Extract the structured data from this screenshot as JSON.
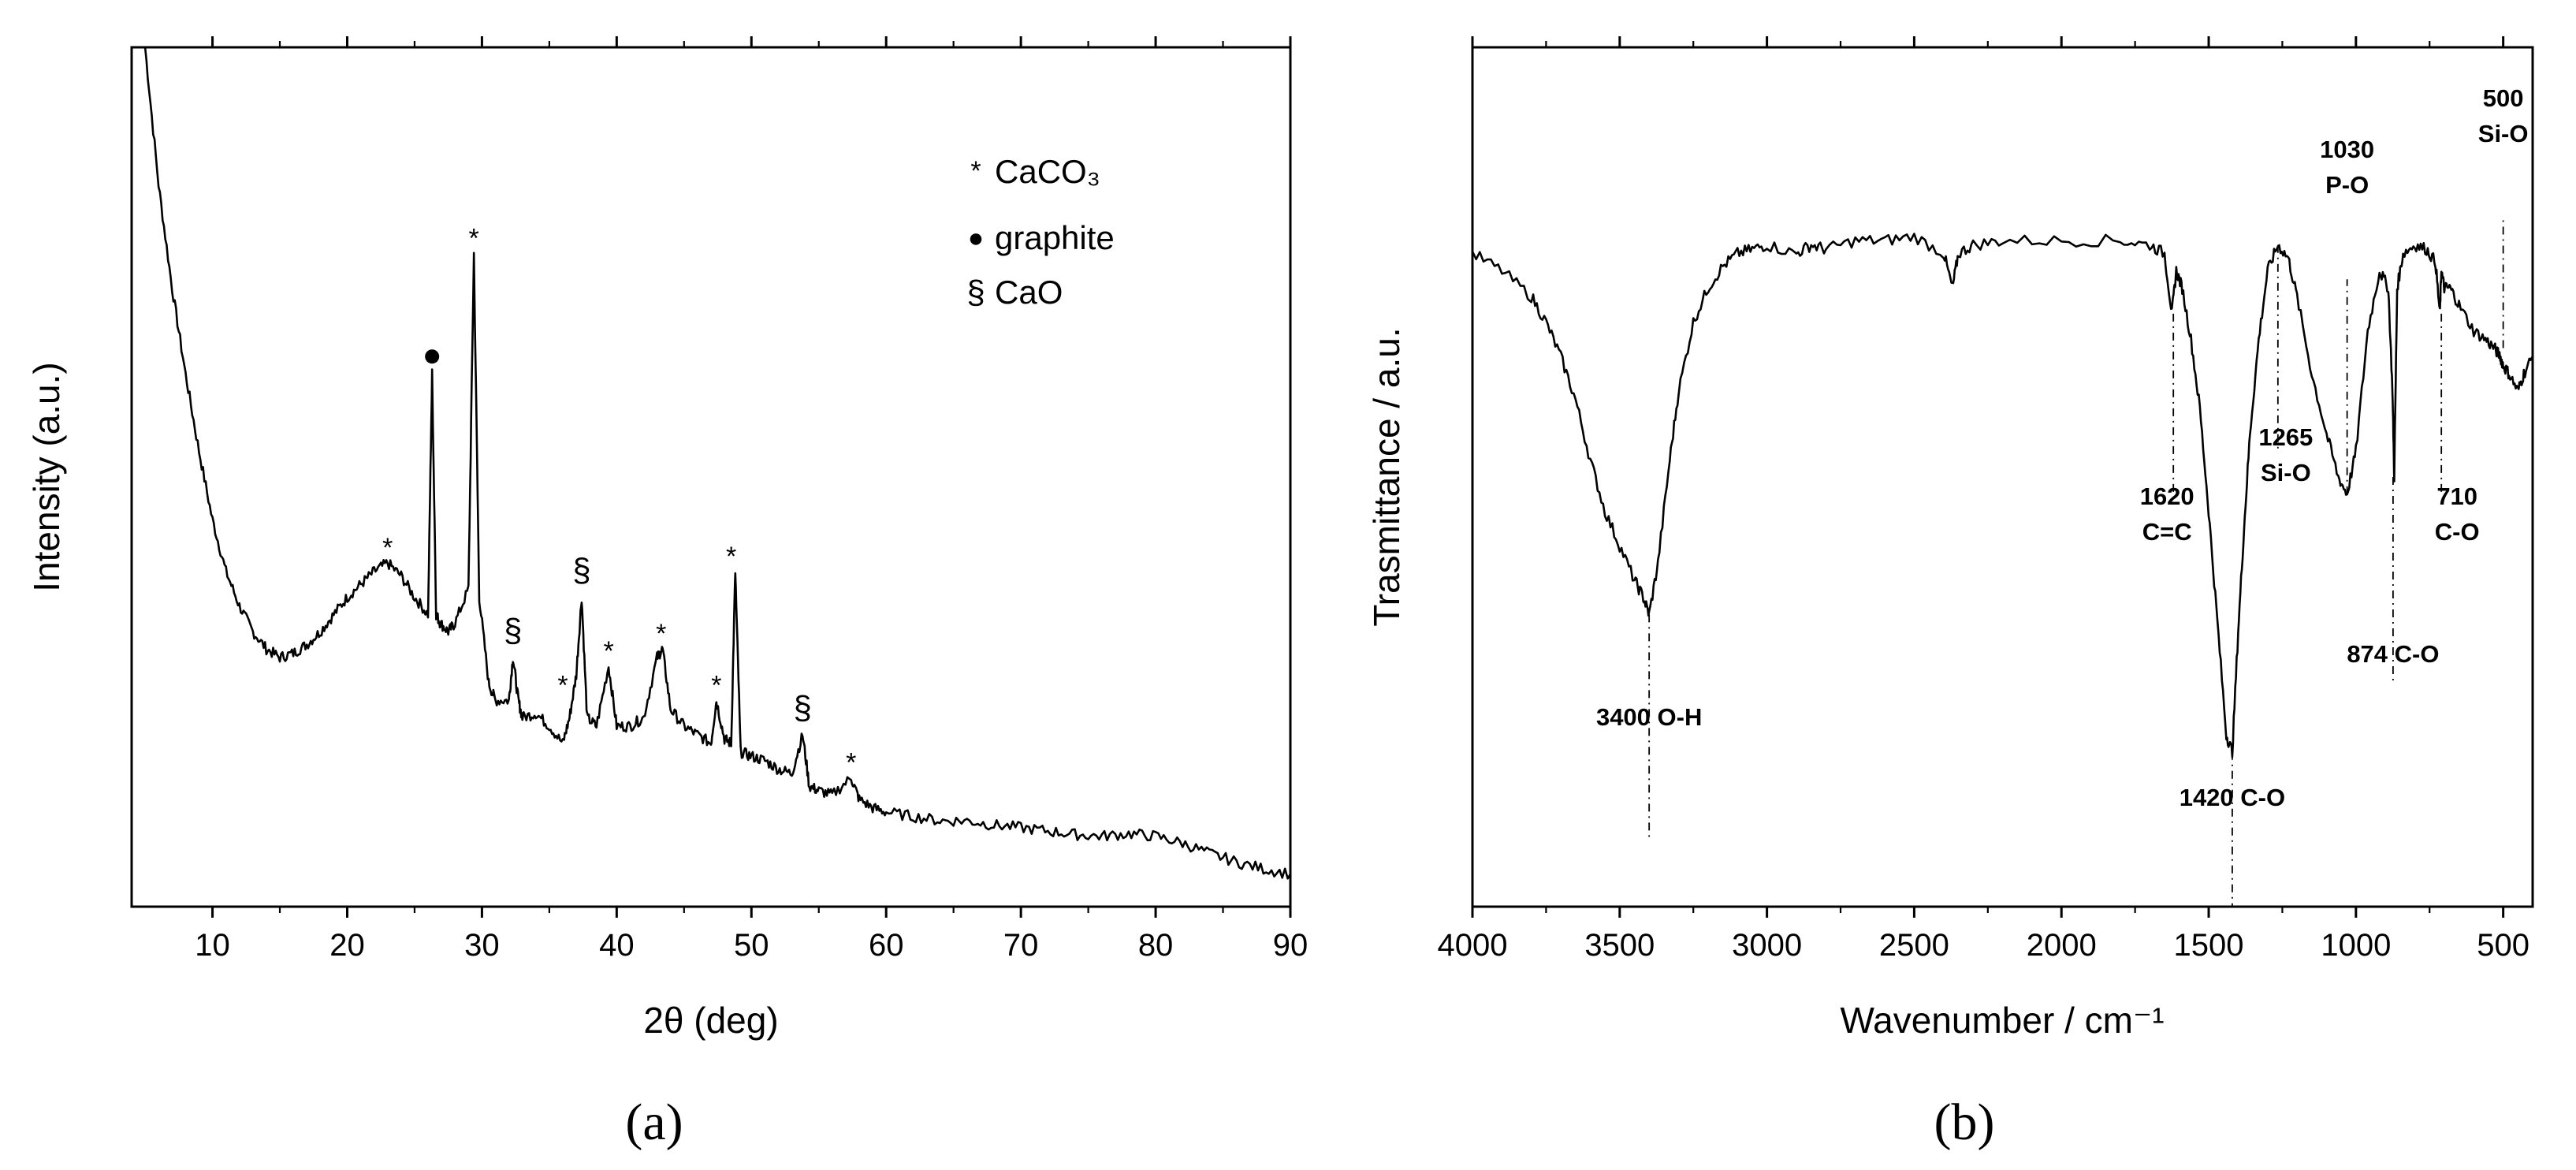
{
  "chart_data": [
    {
      "type": "line",
      "panel": "(a)",
      "xlabel": "2θ (deg)",
      "ylabel": "Intensity (a.u.)",
      "xlim": [
        4,
        90
      ],
      "ylim": [
        0,
        100
      ],
      "xticks": [
        10,
        20,
        30,
        40,
        50,
        60,
        70,
        80,
        90
      ],
      "legend": {
        "position": "top-right",
        "entries": [
          {
            "marker": "*",
            "label": "CaCO₃"
          },
          {
            "marker": "●",
            "label": "graphite"
          },
          {
            "marker": "§",
            "label": "CaO"
          }
        ]
      },
      "series": [
        {
          "name": "XRD pattern",
          "x": [
            5,
            6,
            7,
            8,
            9,
            10,
            11,
            12,
            13,
            14,
            15,
            16,
            17,
            18,
            19,
            20,
            21,
            22,
            23,
            24,
            25,
            26,
            26.3,
            26.6,
            26.9,
            27.5,
            28,
            29,
            29.4,
            29.8,
            30.5,
            31,
            32,
            32.3,
            32.7,
            33,
            34,
            35,
            36,
            36.5,
            37,
            37.4,
            37.8,
            38.5,
            39.4,
            40,
            41,
            42,
            43,
            43.4,
            44,
            45,
            46,
            47,
            47.4,
            48,
            48.5,
            48.8,
            49.2,
            50,
            51,
            52,
            53,
            53.8,
            54.3,
            55,
            56,
            57.4,
            58,
            59,
            60,
            62,
            64,
            66,
            68,
            70,
            72,
            74,
            76,
            78,
            80,
            82,
            84,
            86,
            88,
            90
          ],
          "y": [
            100,
            84,
            72,
            62,
            53,
            45,
            39,
            35,
            32,
            30,
            29,
            29.5,
            30.5,
            32,
            34,
            36,
            37.5,
            39,
            40,
            38.5,
            36,
            34,
            62,
            34,
            33,
            32,
            33,
            37,
            76,
            36,
            26,
            24,
            24,
            29,
            24,
            22,
            22.5,
            21,
            19,
            22,
            27,
            36,
            22,
            21,
            28,
            21,
            21,
            22,
            29,
            30,
            23,
            21,
            20,
            19,
            24,
            19.5,
            19,
            39,
            18,
            17.5,
            17,
            16,
            15.5,
            20,
            14,
            13.5,
            13,
            15,
            12.5,
            11.5,
            11,
            10.5,
            10,
            10,
            9.5,
            9.2,
            8.8,
            8.4,
            8.2,
            8.5,
            8.2,
            7.4,
            6.2,
            5.2,
            4.4,
            3.8
          ]
        }
      ],
      "annotations": [
        {
          "label": "*",
          "x": 23,
          "y": 40
        },
        {
          "label": "●",
          "x": 26.3,
          "y": 62
        },
        {
          "label": "*",
          "x": 29.4,
          "y": 76
        },
        {
          "label": "§",
          "x": 32.3,
          "y": 29
        },
        {
          "label": "*",
          "x": 36,
          "y": 24
        },
        {
          "label": "§",
          "x": 37.4,
          "y": 36
        },
        {
          "label": "*",
          "x": 39.4,
          "y": 28
        },
        {
          "label": "*",
          "x": 43.3,
          "y": 30
        },
        {
          "label": "*",
          "x": 47.4,
          "y": 24
        },
        {
          "label": "*",
          "x": 48.5,
          "y": 39
        },
        {
          "label": "§",
          "x": 53.8,
          "y": 20
        },
        {
          "label": "*",
          "x": 57.4,
          "y": 15
        }
      ]
    },
    {
      "type": "line",
      "panel": "(b)",
      "xlabel": "Wavenumber / cm⁻¹",
      "ylabel": "Trasmittance / a.u.",
      "xlim": [
        4000,
        400
      ],
      "ylim": [
        0,
        100
      ],
      "xticks": [
        4000,
        3500,
        3000,
        2500,
        2000,
        1500,
        1000,
        500
      ],
      "series": [
        {
          "name": "FTIR spectrum",
          "x": [
            4000,
            3900,
            3800,
            3750,
            3700,
            3650,
            3600,
            3550,
            3500,
            3450,
            3420,
            3400,
            3370,
            3330,
            3300,
            3250,
            3200,
            3150,
            3100,
            3050,
            3000,
            2900,
            2850,
            2800,
            2700,
            2600,
            2500,
            2400,
            2370,
            2350,
            2300,
            2200,
            2000,
            1800,
            1700,
            1650,
            1625,
            1610,
            1590,
            1560,
            1530,
            1500,
            1470,
            1440,
            1420,
            1400,
            1380,
            1360,
            1330,
            1300,
            1265,
            1230,
            1200,
            1150,
            1100,
            1060,
            1030,
            1000,
            960,
            920,
            890,
            876,
            870,
            860,
            840,
            800,
            760,
            730,
            715,
            710,
            700,
            680,
            650,
            600,
            560,
            530,
            510,
            500,
            480,
            450,
            430,
            400
          ],
          "y": [
            76,
            74,
            71,
            68,
            64,
            59,
            52,
            46,
            42,
            38,
            36,
            34,
            40,
            52,
            60,
            68,
            72,
            74.5,
            76,
            76.5,
            77,
            76,
            77,
            76.5,
            77.5,
            77.5,
            78,
            76,
            72,
            76,
            77,
            77.5,
            77.5,
            77.5,
            77,
            76,
            69,
            74,
            72,
            66,
            58,
            46,
            33,
            20,
            18,
            32,
            44,
            55,
            66,
            74,
            77,
            75.5,
            71,
            62,
            55,
            50,
            48,
            53,
            67,
            74,
            72,
            60,
            50,
            72,
            76,
            77,
            76.5,
            75,
            69,
            74,
            72,
            72,
            70,
            67,
            66,
            65,
            64,
            63,
            62,
            60,
            62,
            64
          ]
        }
      ],
      "annotations": [
        {
          "label": "3400 O-H",
          "x": 3400
        },
        {
          "label": "1620",
          "label2": "C=C",
          "x": 1620
        },
        {
          "label": "1420 C-O",
          "x": 1420
        },
        {
          "label": "1265",
          "label2": "Si-O",
          "x": 1265
        },
        {
          "label": "1030",
          "label2": "P-O",
          "x": 1030
        },
        {
          "label": "874 C-O",
          "x": 874
        },
        {
          "label": "710",
          "label2": "C-O",
          "x": 710
        },
        {
          "label": "500",
          "label2": "Si-O",
          "x": 500
        }
      ]
    }
  ],
  "captions": [
    "(a)",
    "(b)"
  ]
}
